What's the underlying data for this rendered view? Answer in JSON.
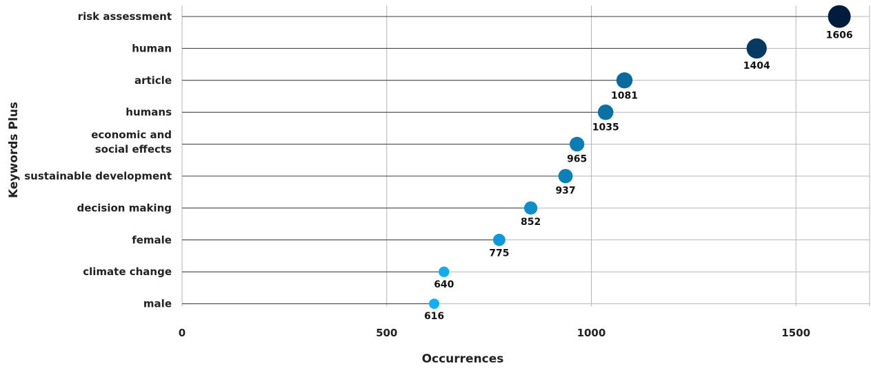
{
  "chart_data": {
    "type": "scatter",
    "variant": "lollipop",
    "xlabel": "Occurrences",
    "ylabel": "Keywords Plus",
    "xlim": [
      0,
      1680
    ],
    "xticks": [
      "0",
      "500",
      "1000",
      "1500"
    ],
    "grid": true,
    "categories": [
      [
        "risk assessment"
      ],
      [
        "human"
      ],
      [
        "article"
      ],
      [
        "humans"
      ],
      [
        "economic and",
        "social effects"
      ],
      [
        "sustainable development"
      ],
      [
        "decision making"
      ],
      [
        "female"
      ],
      [
        "climate change"
      ],
      [
        "male"
      ]
    ],
    "values": [
      1606,
      1404,
      1081,
      1035,
      965,
      937,
      852,
      775,
      640,
      616
    ],
    "marker_size": "proportional to value",
    "color_scale": [
      "#12b0f2",
      "#021c3d"
    ]
  }
}
